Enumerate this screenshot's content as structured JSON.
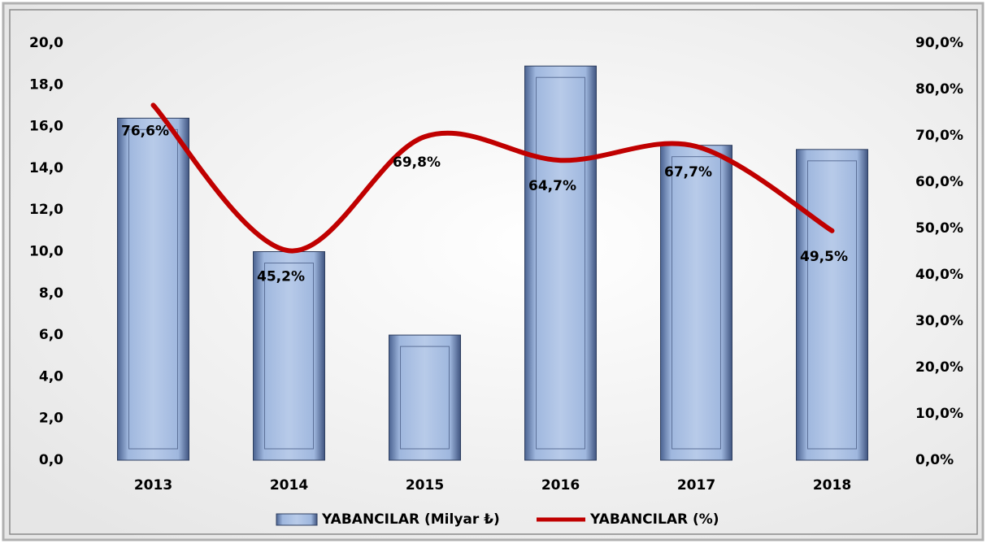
{
  "chart_data": {
    "type": "bar",
    "categories": [
      "2013",
      "2014",
      "2015",
      "2016",
      "2017",
      "2018"
    ],
    "series": [
      {
        "name": "YABANCILAR (Milyar ₺)",
        "color": "#8fa9d4",
        "values": [
          16.4,
          10.0,
          6.0,
          18.9,
          15.1,
          14.9
        ]
      },
      {
        "name": "YABANCILAR (%)",
        "color": "#c00000",
        "type": "line",
        "axis": "y2",
        "values": [
          76.6,
          45.2,
          69.8,
          64.7,
          67.7,
          49.5
        ],
        "value_labels": [
          "76,6%",
          "45,2%",
          "69,8%",
          "64,7%",
          "67,7%",
          "49,5%"
        ]
      }
    ],
    "ylim": [
      0,
      20
    ],
    "yticks": [
      {
        "value": 0,
        "label": "0,0"
      },
      {
        "value": 2,
        "label": "2,0"
      },
      {
        "value": 4,
        "label": "4,0"
      },
      {
        "value": 6,
        "label": "6,0"
      },
      {
        "value": 8,
        "label": "8,0"
      },
      {
        "value": 10,
        "label": "10,0"
      },
      {
        "value": 12,
        "label": "12,0"
      },
      {
        "value": 14,
        "label": "14,0"
      },
      {
        "value": 16,
        "label": "16,0"
      },
      {
        "value": 18,
        "label": "18,0"
      },
      {
        "value": 20,
        "label": "20,0"
      }
    ],
    "y2lim": [
      0,
      90
    ],
    "y2ticks": [
      {
        "value": 0,
        "label": "0,0%"
      },
      {
        "value": 10,
        "label": "10,0%"
      },
      {
        "value": 20,
        "label": "20,0%"
      },
      {
        "value": 30,
        "label": "30,0%"
      },
      {
        "value": 40,
        "label": "40,0%"
      },
      {
        "value": 50,
        "label": "50,0%"
      },
      {
        "value": 60,
        "label": "60,0%"
      },
      {
        "value": 70,
        "label": "70,0%"
      },
      {
        "value": 80,
        "label": "80,0%"
      },
      {
        "value": 90,
        "label": "90,0%"
      }
    ],
    "legend": "bottom"
  }
}
